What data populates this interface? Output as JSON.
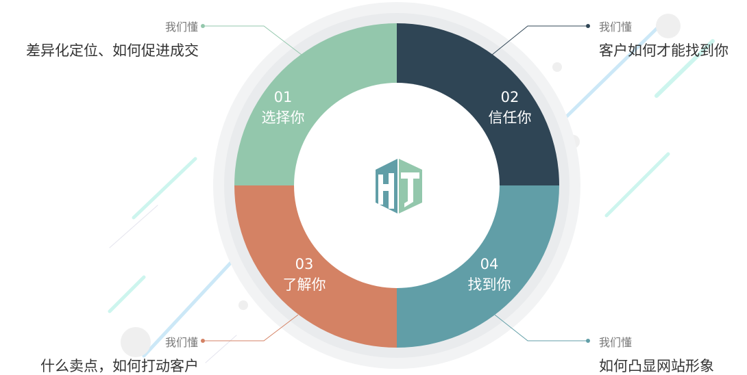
{
  "colors": {
    "q1": "#93c7ac",
    "q2": "#2f4555",
    "q3": "#d48264",
    "q4": "#619ea7",
    "halo": "#eef0f1"
  },
  "center_logo": {
    "text": "HT",
    "icon": "ht-hexagon-logo"
  },
  "segments": [
    {
      "num": "01",
      "label": "选择你",
      "tag": "我们懂",
      "desc": "差异化定位、如何促进成交"
    },
    {
      "num": "02",
      "label": "信任你",
      "tag": "我们懂",
      "desc": "客户如何才能找到你"
    },
    {
      "num": "03",
      "label": "了解你",
      "tag": "我们懂",
      "desc": "什么卖点，如何打动客户"
    },
    {
      "num": "04",
      "label": "找到你",
      "tag": "我们懂",
      "desc": "如何凸显网站形象"
    }
  ]
}
